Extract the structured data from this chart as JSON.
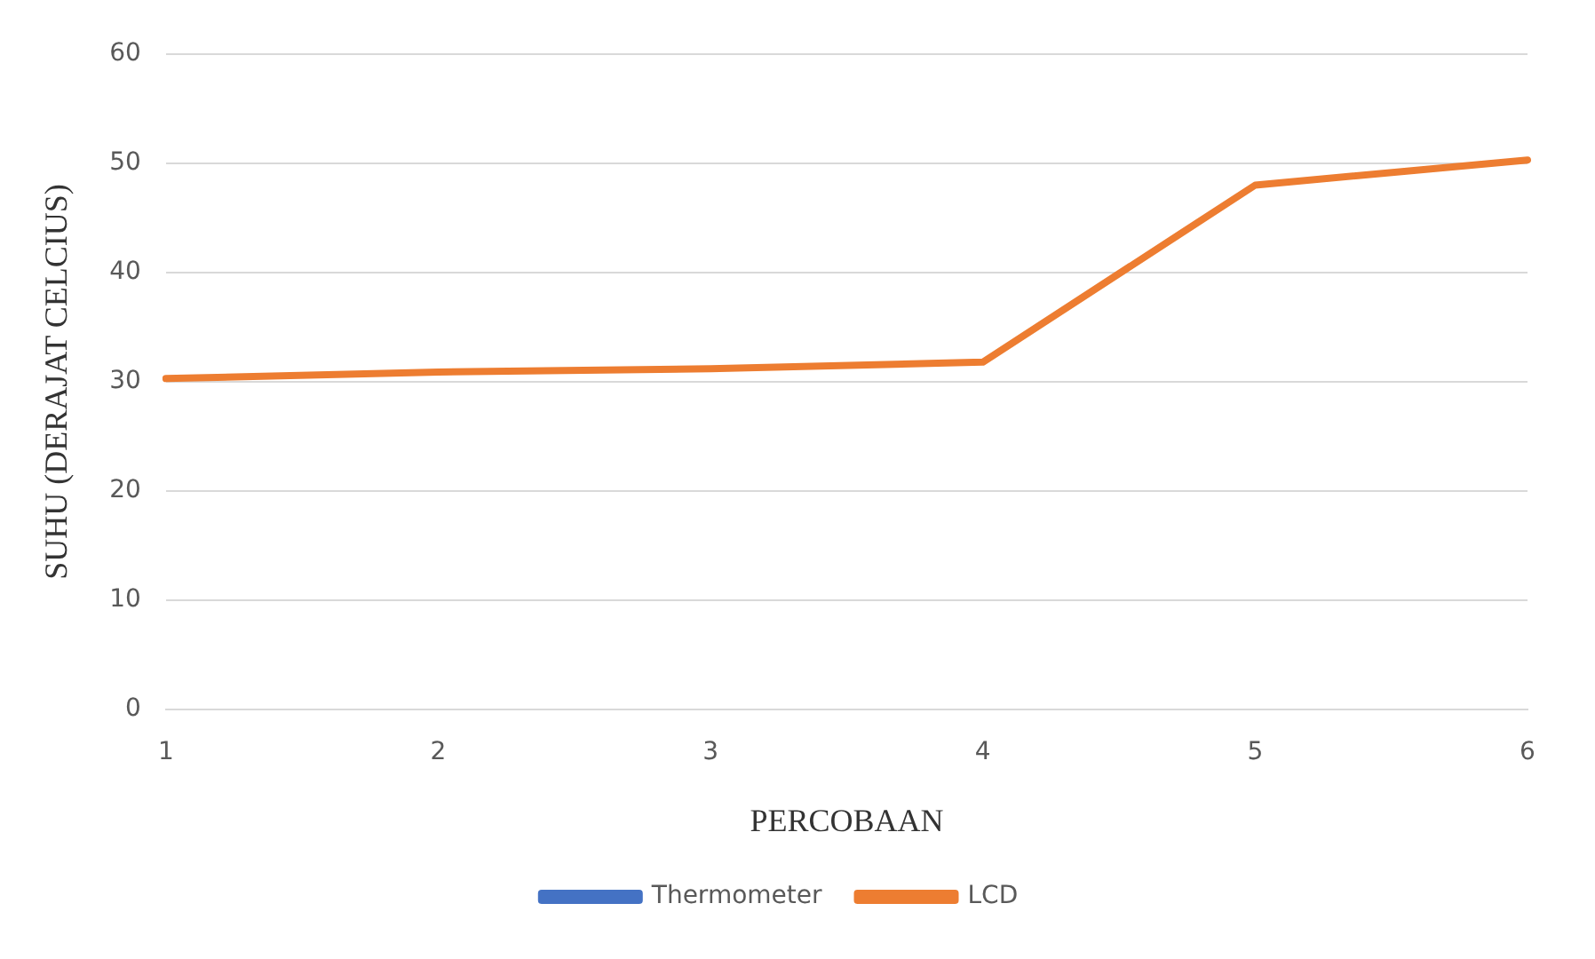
{
  "chart_data": {
    "type": "line",
    "xlabel": "PERCOBAAN",
    "ylabel": "SUHU (DERAJAT CELCIUS)",
    "categories": [
      "1",
      "2",
      "3",
      "4",
      "5",
      "6"
    ],
    "series": [
      {
        "name": "Thermometer",
        "color": "#4472c4",
        "values": [
          null,
          null,
          null,
          null,
          null,
          null
        ]
      },
      {
        "name": "LCD",
        "color": "#ed7d31",
        "values": [
          30.3,
          30.9,
          31.2,
          31.8,
          48,
          50.3
        ]
      }
    ],
    "ylim": [
      0,
      60
    ],
    "yticks": [
      0,
      10,
      20,
      30,
      40,
      50,
      60
    ],
    "grid": "y",
    "legend": "bottom",
    "marker": "none",
    "line_style": "solid"
  }
}
